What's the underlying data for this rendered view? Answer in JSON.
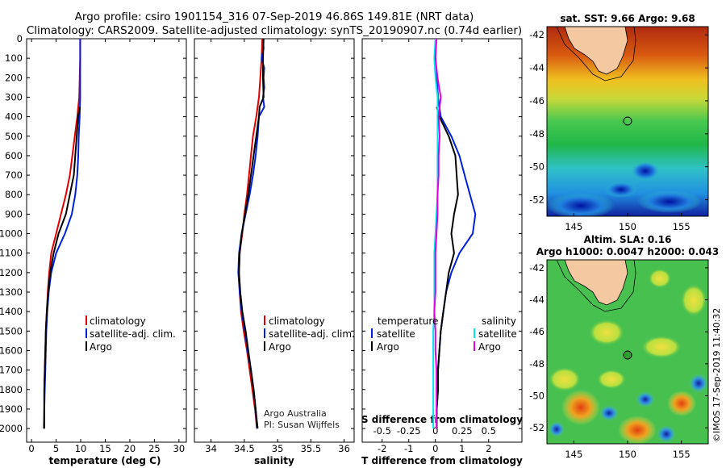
{
  "header": {
    "line1": "Argo profile: csiro 1901154_316 07-Sep-2019 46.86S 149.81E (NRT data)",
    "line2": "Climatology: CARS2009. Satellite-adjusted climatology: synTS_20190907.nc (0.74d earlier)"
  },
  "colors": {
    "climatology": "#e00000",
    "satellite": "#0020e0",
    "argo": "#000000",
    "sal_satellite": "#00e8f0",
    "sal_argo": "#e000e0"
  },
  "depth_ticks": [
    "0",
    "100",
    "200",
    "300",
    "400",
    "500",
    "600",
    "700",
    "800",
    "900",
    "1000",
    "1100",
    "1200",
    "1300",
    "1400",
    "1500",
    "1600",
    "1700",
    "1800",
    "1900",
    "2000"
  ],
  "legend": {
    "climatology": "climatology",
    "satellite_adj": "satellite-adj. clim.",
    "argo": "Argo",
    "temperature": "temperature",
    "salinity": "salinity",
    "satellite": "satellite"
  },
  "credits": {
    "line1": "Argo Australia",
    "line2": "PI: Susan Wijffels"
  },
  "imos_stamp": "©IMOS 17-Sep-2019 11:40:32",
  "chart_data": [
    {
      "type": "line",
      "name": "temperature",
      "xlabel": "temperature (deg C)",
      "ylabel": "depth",
      "xlim": [
        -1,
        31.5
      ],
      "ylim": [
        2070,
        0
      ],
      "xticks": [
        "0",
        "5",
        "10",
        "15",
        "20",
        "25",
        "30"
      ],
      "series": [
        {
          "name": "climatology",
          "color": "#e00000",
          "depth": [
            0,
            100,
            200,
            300,
            400,
            500,
            600,
            700,
            800,
            900,
            1000,
            1100,
            1200,
            1300,
            1400,
            1500,
            1600,
            1700,
            1800,
            1900,
            2000
          ],
          "values": [
            9.9,
            9.9,
            9.8,
            9.7,
            9.3,
            8.8,
            8.3,
            7.8,
            7.0,
            6.0,
            5.0,
            4.0,
            3.6,
            3.3,
            3.1,
            2.9,
            2.8,
            2.7,
            2.6,
            2.6,
            2.5
          ]
        },
        {
          "name": "satellite-adj. clim.",
          "color": "#0020e0",
          "depth": [
            0,
            100,
            200,
            300,
            400,
            500,
            600,
            700,
            800,
            900,
            1000,
            1100,
            1200,
            1300,
            1400,
            1500,
            1600,
            1700,
            1800,
            1900,
            2000
          ],
          "values": [
            9.9,
            9.9,
            9.9,
            9.9,
            9.8,
            9.6,
            9.5,
            9.3,
            8.9,
            8.2,
            6.8,
            5.0,
            4.0,
            3.5,
            3.2,
            3.0,
            2.9,
            2.8,
            2.7,
            2.6,
            2.6
          ]
        },
        {
          "name": "Argo",
          "color": "#000000",
          "depth": [
            350,
            400,
            500,
            600,
            700,
            800,
            900,
            1000,
            1100,
            1200,
            1300,
            1400,
            1500,
            1600,
            1700,
            1800,
            1900,
            2000
          ],
          "values": [
            9.8,
            9.5,
            9.2,
            8.9,
            8.6,
            7.8,
            7.0,
            5.5,
            4.5,
            3.8,
            3.4,
            3.1,
            2.9,
            2.8,
            2.7,
            2.6,
            2.6,
            2.6
          ]
        }
      ]
    },
    {
      "type": "line",
      "name": "salinity",
      "xlabel": "salinity",
      "ylabel": "depth",
      "xlim": [
        33.75,
        36.15
      ],
      "ylim": [
        2070,
        0
      ],
      "xticks": [
        "34",
        "34.5",
        "35",
        "35.5",
        "36"
      ],
      "series": [
        {
          "name": "climatology",
          "color": "#e00000",
          "depth": [
            0,
            100,
            200,
            300,
            400,
            500,
            600,
            700,
            800,
            900,
            1000,
            1100,
            1200,
            1300,
            1400,
            1500,
            1600,
            1700,
            1800,
            1900,
            2000
          ],
          "values": [
            34.77,
            34.76,
            34.74,
            34.72,
            34.68,
            34.63,
            34.6,
            34.57,
            34.54,
            34.5,
            34.47,
            34.43,
            34.42,
            34.43,
            34.45,
            34.49,
            34.54,
            34.58,
            34.62,
            34.66,
            34.69
          ]
        },
        {
          "name": "satellite-adj. clim.",
          "color": "#0020e0",
          "depth": [
            0,
            50,
            100,
            150,
            200,
            250,
            300,
            350,
            400,
            500,
            600,
            700,
            800,
            900,
            1000,
            1100,
            1200,
            1300,
            1400,
            1500,
            1600,
            1700,
            1800,
            1900,
            2000
          ],
          "values": [
            34.78,
            34.79,
            34.76,
            34.8,
            34.79,
            34.8,
            34.78,
            34.8,
            34.72,
            34.7,
            34.67,
            34.63,
            34.58,
            34.52,
            34.46,
            34.42,
            34.41,
            34.43,
            34.46,
            34.51,
            34.55,
            34.6,
            34.64,
            34.67,
            34.69
          ]
        },
        {
          "name": "Argo",
          "color": "#000000",
          "depth": [
            0,
            100,
            200,
            300,
            350,
            400,
            500,
            600,
            700,
            800,
            900,
            1000,
            1100,
            1200,
            1300,
            1400,
            1500,
            1600,
            1700,
            1800,
            1900,
            2000
          ],
          "values": [
            34.79,
            34.78,
            34.78,
            34.79,
            34.73,
            34.72,
            34.68,
            34.64,
            34.6,
            34.56,
            34.51,
            34.46,
            34.43,
            34.42,
            34.44,
            34.47,
            34.52,
            34.56,
            34.6,
            34.64,
            34.67,
            34.7
          ]
        }
      ]
    },
    {
      "type": "line",
      "name": "difference",
      "xlabel": "T difference from climatology",
      "x2label": "S difference from climatology",
      "ylabel": "depth",
      "xlim": [
        -2.75,
        3.25
      ],
      "x2lim": [
        -0.6875,
        0.8125
      ],
      "ylim": [
        2070,
        0
      ],
      "xticks": [
        "-2",
        "-1",
        "0",
        "1",
        "2"
      ],
      "x2ticks": [
        "-0.5",
        "-0.25",
        "0",
        "0.25",
        "0.5"
      ],
      "series": [
        {
          "name": "temperature satellite",
          "color": "#0020e0",
          "depth": [
            0,
            100,
            200,
            300,
            400,
            500,
            600,
            700,
            800,
            900,
            1000,
            1100,
            1200,
            1300,
            1400,
            1500,
            1600,
            1700,
            1800,
            1900,
            2000
          ],
          "values": [
            0.0,
            0.0,
            0.05,
            0.1,
            0.2,
            0.6,
            0.9,
            1.1,
            1.3,
            1.5,
            1.4,
            0.9,
            0.6,
            0.4,
            0.3,
            0.2,
            0.15,
            0.1,
            0.1,
            0.05,
            0.05
          ]
        },
        {
          "name": "temperature Argo",
          "color": "#000000",
          "depth": [
            350,
            400,
            500,
            600,
            700,
            800,
            900,
            1000,
            1100,
            1200,
            1300,
            1400,
            1500,
            1600,
            1700,
            1800,
            1900,
            2000
          ],
          "values": [
            0.05,
            0.15,
            0.5,
            0.75,
            0.8,
            0.85,
            0.7,
            0.6,
            0.7,
            0.5,
            0.4,
            0.3,
            0.2,
            0.15,
            0.1,
            0.1,
            0.05,
            0.05
          ]
        },
        {
          "name": "salinity satellite",
          "color": "#00e8f0",
          "depth": [
            0,
            100,
            200,
            300,
            400,
            500,
            600,
            700,
            800,
            900,
            1000,
            1100,
            1200,
            1300,
            1400,
            1500,
            1600,
            1700,
            1800,
            1900,
            2000
          ],
          "values": [
            0.0,
            -0.01,
            0.0,
            0.02,
            0.02,
            0.02,
            0.02,
            0.02,
            0.02,
            0.01,
            0.0,
            -0.01,
            -0.01,
            -0.01,
            -0.01,
            -0.02,
            -0.02,
            -0.02,
            -0.02,
            -0.02,
            -0.02
          ]
        },
        {
          "name": "salinity Argo",
          "color": "#e000e0",
          "depth": [
            0,
            100,
            200,
            300,
            400,
            500,
            600,
            700,
            800,
            900,
            1000,
            1100,
            1200,
            1300,
            1400,
            1500,
            1600,
            1700,
            1800,
            1900,
            2000
          ],
          "values": [
            0.01,
            0.0,
            0.02,
            0.05,
            0.03,
            0.04,
            0.03,
            0.03,
            0.02,
            0.02,
            0.01,
            0.0,
            0.0,
            0.0,
            -0.01,
            0.0,
            0.0,
            0.01,
            0.01,
            0.01,
            0.01
          ]
        }
      ]
    },
    {
      "type": "heatmap",
      "name": "sst",
      "title": "sat. SST: 9.66 Argo: 9.68",
      "xticks": [
        "145",
        "150",
        "155"
      ],
      "yticks": [
        "-42",
        "-44",
        "-46",
        "-48",
        "-50",
        "-52"
      ],
      "xlim": [
        142.5,
        157.5
      ],
      "ylim": [
        -53,
        -41.5
      ],
      "argo_position": {
        "lon": 149.81,
        "lat": -46.86
      }
    },
    {
      "type": "heatmap",
      "name": "sla",
      "title": "Altim. SLA: 0.16",
      "subtitle": "Argo h1000: 0.0047 h2000: 0.043",
      "xticks": [
        "145",
        "150",
        "155"
      ],
      "yticks": [
        "-42",
        "-44",
        "-46",
        "-48",
        "-50",
        "-52"
      ],
      "xlim": [
        142.5,
        157.5
      ],
      "ylim": [
        -53,
        -41.5
      ],
      "argo_position": {
        "lon": 149.81,
        "lat": -46.86
      }
    }
  ]
}
